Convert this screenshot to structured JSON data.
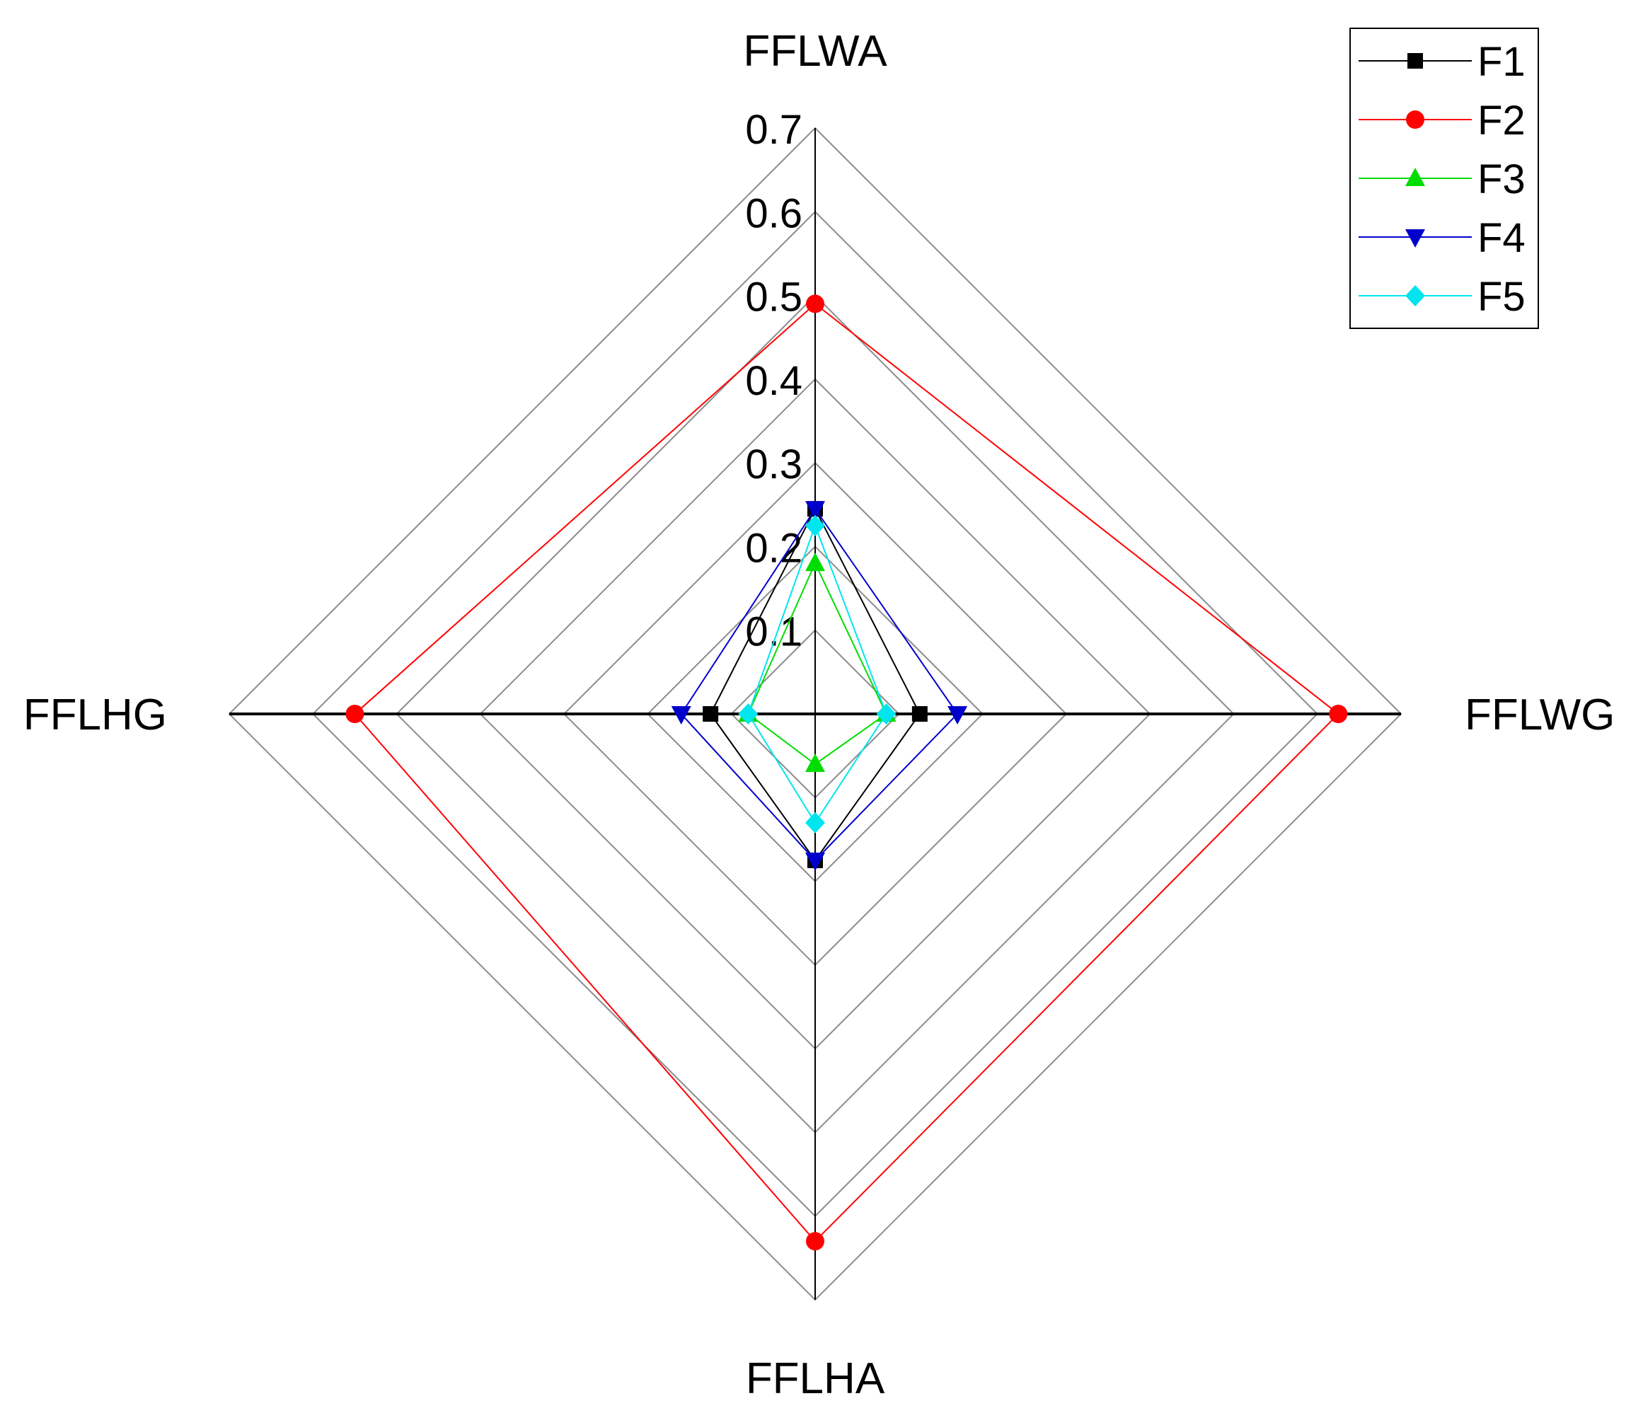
{
  "chart_data": {
    "type": "radar",
    "axes": [
      "FFLWA",
      "FFLWG",
      "FFLHA",
      "FFLHG"
    ],
    "rlim": [
      0,
      0.7
    ],
    "ticks": [
      "0.1",
      "0.2",
      "0.3",
      "0.4",
      "0.5",
      "0.6",
      "0.7"
    ],
    "grid": true,
    "legend_position": "top-right",
    "series": [
      {
        "name": "F1",
        "color": "#000000",
        "marker": "square",
        "values": [
          0.245,
          0.125,
          0.175,
          0.125
        ]
      },
      {
        "name": "F2",
        "color": "#ff0000",
        "marker": "circle",
        "values": [
          0.49,
          0.625,
          0.63,
          0.55
        ]
      },
      {
        "name": "F3",
        "color": "#00dd00",
        "marker": "triangle-up",
        "values": [
          0.18,
          0.085,
          0.06,
          0.08
        ]
      },
      {
        "name": "F4",
        "color": "#0000cc",
        "marker": "triangle-down",
        "values": [
          0.245,
          0.17,
          0.175,
          0.16
        ]
      },
      {
        "name": "F5",
        "color": "#00e5ee",
        "marker": "diamond",
        "values": [
          0.225,
          0.085,
          0.13,
          0.08
        ]
      }
    ]
  }
}
